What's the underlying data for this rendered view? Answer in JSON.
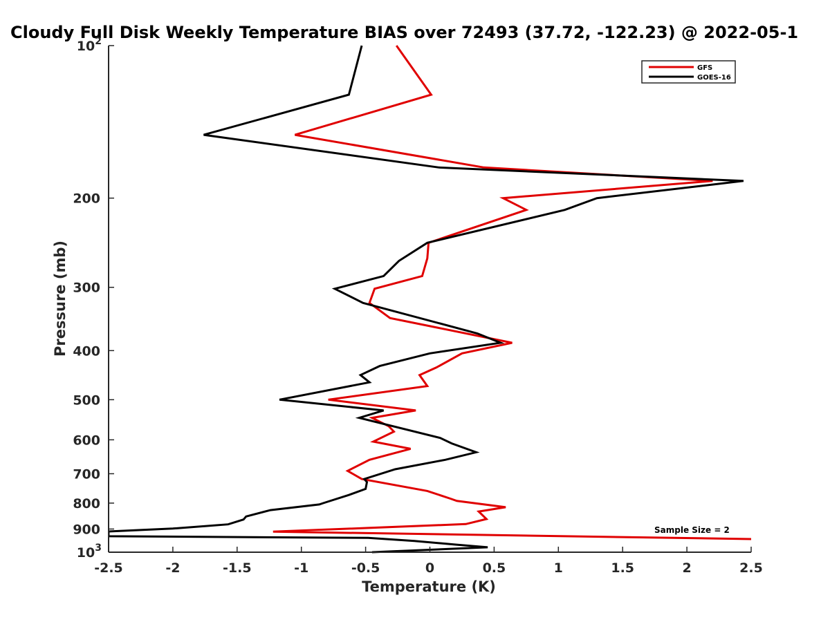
{
  "chart_data": {
    "type": "line",
    "title": "Cloudy Full Disk Weekly Temperature BIAS over 72493 (37.72, -122.23) @ 2022-05-1",
    "xlabel": "Temperature (K)",
    "ylabel": "Pressure (mb)",
    "xlim": [
      -2.5,
      2.5
    ],
    "ylim": [
      100,
      1000
    ],
    "y_scale": "log",
    "y_reversed": true,
    "grid": false,
    "legend_position": "top-right",
    "x_ticks": [
      "-2.5",
      "-2",
      "-1.5",
      "-1",
      "-0.5",
      "0",
      "0.5",
      "1",
      "1.5",
      "2",
      "2.5"
    ],
    "x_tick_values": [
      -2.5,
      -2,
      -1.5,
      -1,
      -0.5,
      0,
      0.5,
      1,
      1.5,
      2,
      2.5
    ],
    "y_ticks": [
      {
        "value": 100,
        "base": "10",
        "exp": "2"
      },
      {
        "value": 200,
        "label": "200"
      },
      {
        "value": 300,
        "label": "300"
      },
      {
        "value": 400,
        "label": "400"
      },
      {
        "value": 500,
        "label": "500"
      },
      {
        "value": 600,
        "label": "600"
      },
      {
        "value": 700,
        "label": "700"
      },
      {
        "value": 800,
        "label": "800"
      },
      {
        "value": 900,
        "label": "900"
      },
      {
        "value": 1000,
        "base": "10",
        "exp": "3"
      }
    ],
    "series": [
      {
        "name": "GFS",
        "color": "#e00000",
        "points": [
          [
            -0.26,
            100
          ],
          [
            0.01,
            125
          ],
          [
            -1.05,
            150
          ],
          [
            0.42,
            174
          ],
          [
            2.2,
            185
          ],
          [
            0.57,
            200
          ],
          [
            0.75,
            211
          ],
          [
            -0.01,
            245
          ],
          [
            -0.02,
            263
          ],
          [
            -0.06,
            285
          ],
          [
            -0.43,
            302
          ],
          [
            -0.47,
            322
          ],
          [
            -0.31,
            345
          ],
          [
            0.64,
            386
          ],
          [
            0.25,
            405
          ],
          [
            0.05,
            432
          ],
          [
            -0.08,
            447
          ],
          [
            -0.02,
            470
          ],
          [
            -0.79,
            500
          ],
          [
            -0.11,
            525
          ],
          [
            -0.45,
            543
          ],
          [
            -0.32,
            564
          ],
          [
            -0.28,
            578
          ],
          [
            -0.44,
            605
          ],
          [
            -0.15,
            625
          ],
          [
            -0.47,
            657
          ],
          [
            -0.64,
            691
          ],
          [
            -0.53,
            717
          ],
          [
            -0.02,
            757
          ],
          [
            0.16,
            784
          ],
          [
            0.21,
            792
          ],
          [
            0.59,
            815
          ],
          [
            0.38,
            831
          ],
          [
            0.44,
            860
          ],
          [
            0.28,
            880
          ],
          [
            -1.22,
            911
          ],
          [
            2.5,
            942
          ]
        ]
      },
      {
        "name": "GOES-16",
        "color": "#000000",
        "points": [
          [
            -0.53,
            100
          ],
          [
            -0.63,
            125
          ],
          [
            -1.76,
            150
          ],
          [
            0.07,
            174
          ],
          [
            2.44,
            185
          ],
          [
            1.3,
            200
          ],
          [
            1.05,
            211
          ],
          [
            -0.02,
            245
          ],
          [
            -0.24,
            266
          ],
          [
            -0.36,
            285
          ],
          [
            -0.74,
            302
          ],
          [
            -0.52,
            322
          ],
          [
            0.37,
            370
          ],
          [
            0.55,
            386
          ],
          [
            0.0,
            405
          ],
          [
            -0.39,
            429
          ],
          [
            -0.54,
            447
          ],
          [
            -0.47,
            462
          ],
          [
            -1.17,
            500
          ],
          [
            -0.36,
            525
          ],
          [
            -0.55,
            543
          ],
          [
            0.08,
            595
          ],
          [
            0.17,
            610
          ],
          [
            0.36,
            635
          ],
          [
            0.12,
            657
          ],
          [
            -0.27,
            686
          ],
          [
            -0.51,
            717
          ],
          [
            -0.49,
            727
          ],
          [
            -0.5,
            750
          ],
          [
            -0.63,
            771
          ],
          [
            -0.83,
            800
          ],
          [
            -0.86,
            805
          ],
          [
            -1.24,
            826
          ],
          [
            -1.43,
            850
          ],
          [
            -1.45,
            862
          ],
          [
            -1.57,
            881
          ],
          [
            -2.0,
            898
          ],
          [
            -2.5,
            910
          ],
          [
            -2.5,
            914
          ],
          [
            -2.5,
            930
          ],
          [
            -0.48,
            937
          ],
          [
            -0.12,
            950
          ],
          [
            0.2,
            966
          ],
          [
            0.45,
            978
          ],
          [
            -0.45,
            1000
          ]
        ]
      }
    ],
    "annotation": "Sample Size = 2"
  }
}
